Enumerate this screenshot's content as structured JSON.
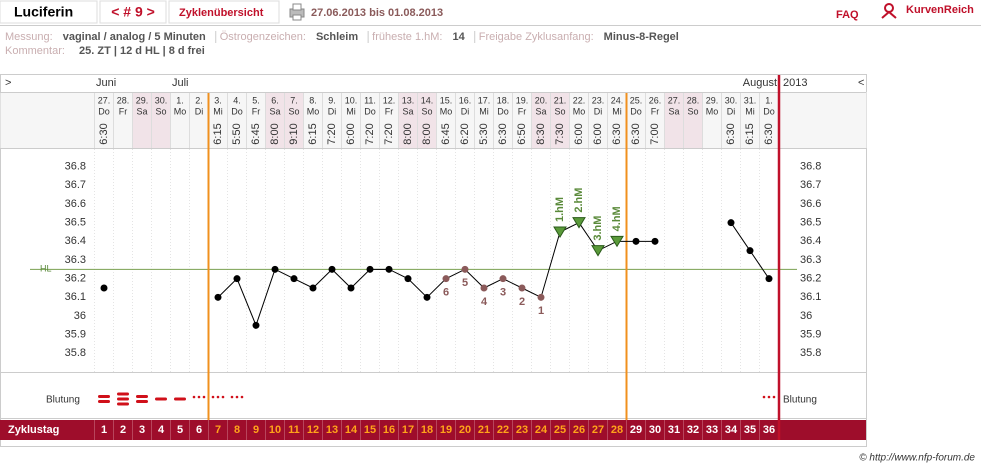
{
  "header": {
    "user": "Luciferin",
    "cycle_nav": "< # 9 >",
    "overview": "Zyklenübersicht",
    "period": "27.06.2013 bis 01.08.2013",
    "faq": "FAQ",
    "logo": "KurvenReich",
    "fields": [
      {
        "label": "Messung:",
        "value": "vaginal / analog / 5 Minuten"
      },
      {
        "label": "Östrogenzeichen:",
        "value": "Schleim"
      },
      {
        "label": "früheste 1.hM:",
        "value": 14
      },
      {
        "label": "Freigabe Zyklusanfang:",
        "value": "Minus-8-Regel"
      }
    ],
    "comment_label": "Kommentar:",
    "comment": "25. ZT | 12 d HL | 8 d frei",
    "nav_left": ">",
    "nav_right": "<"
  },
  "chart_data": {
    "type": "line",
    "months": [
      "Juni",
      "Juli",
      "August"
    ],
    "year": 2013,
    "categories": [
      "27.",
      "28.",
      "29.",
      "30.",
      "1.",
      "2.",
      "3.",
      "4.",
      "5.",
      "6.",
      "7.",
      "8.",
      "9.",
      "10.",
      "11.",
      "12.",
      "13.",
      "14.",
      "15.",
      "16.",
      "17.",
      "18.",
      "19.",
      "20.",
      "21.",
      "22.",
      "23.",
      "24.",
      "25.",
      "26.",
      "27.",
      "28.",
      "29.",
      "30.",
      "31.",
      "1."
    ],
    "weekdays": [
      "Do",
      "Fr",
      "Sa",
      "So",
      "Mo",
      "Di",
      "Mi",
      "Do",
      "Fr",
      "Sa",
      "So",
      "Mo",
      "Di",
      "Mi",
      "Do",
      "Fr",
      "Sa",
      "So",
      "Mo",
      "Di",
      "Mi",
      "Do",
      "Fr",
      "Sa",
      "So",
      "Mo",
      "Di",
      "Mi",
      "Do",
      "Fr",
      "Sa",
      "So",
      "Mo",
      "Di",
      "Mi",
      "Do"
    ],
    "times": [
      "6:30",
      null,
      null,
      null,
      null,
      null,
      "6:15",
      "5:50",
      "6:45",
      "8:00",
      "9:10",
      "6:15",
      "7:20",
      "6:00",
      "7:20",
      "7:20",
      "8:00",
      "8:00",
      "6:45",
      "6:20",
      "5:30",
      "6:30",
      "6:50",
      "8:30",
      "7:30",
      "6:00",
      "6:00",
      "6:30",
      "6:30",
      "7:00",
      null,
      null,
      null,
      "6:30",
      "6:15",
      "6:30"
    ],
    "values": [
      36.15,
      null,
      null,
      null,
      null,
      null,
      36.1,
      36.2,
      35.95,
      36.25,
      36.2,
      36.15,
      36.25,
      36.15,
      36.25,
      36.25,
      36.2,
      36.1,
      36.2,
      36.25,
      36.15,
      36.2,
      36.15,
      36.1,
      36.45,
      36.5,
      36.35,
      36.4,
      36.4,
      36.4,
      null,
      null,
      null,
      36.5,
      36.35,
      36.2
    ],
    "color": "#000000",
    "point_labels": [
      null,
      null,
      null,
      null,
      null,
      null,
      null,
      null,
      null,
      null,
      null,
      null,
      null,
      null,
      null,
      null,
      null,
      null,
      6,
      5,
      4,
      3,
      2,
      1,
      "1.hM",
      "2.hM",
      "3.hM",
      "4.hM",
      null,
      null,
      null,
      null,
      null,
      null,
      null,
      null
    ],
    "ylim": [
      35.7,
      36.9
    ],
    "yticks": [
      35.8,
      35.9,
      36,
      36.1,
      36.2,
      36.3,
      36.4,
      36.5,
      36.6,
      36.7,
      36.8
    ],
    "hl": {
      "label": "HL",
      "value": 36.25
    },
    "bleeding_label": "Blutung",
    "cycle_label": "Zyklustag",
    "cycle_days": [
      1,
      2,
      3,
      4,
      5,
      6,
      7,
      8,
      9,
      10,
      11,
      12,
      13,
      14,
      15,
      16,
      17,
      18,
      19,
      20,
      21,
      22,
      23,
      24,
      25,
      26,
      27,
      28,
      29,
      30,
      31,
      32,
      33,
      34,
      35,
      36
    ]
  },
  "footer": "© http://www.nfp-forum.de"
}
